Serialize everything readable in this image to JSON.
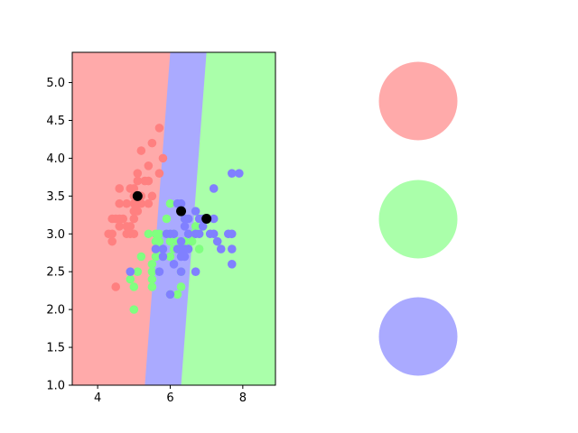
{
  "chart_data": [
    {
      "type": "scatter",
      "title": "",
      "xlabel": "",
      "ylabel": "",
      "xlim": [
        3.3,
        8.9
      ],
      "ylim": [
        1.0,
        5.4
      ],
      "xticks": [
        4,
        6,
        8
      ],
      "yticks": [
        1.0,
        1.5,
        2.0,
        2.5,
        3.0,
        3.5,
        4.0,
        4.5,
        5.0
      ],
      "grid": false,
      "legend": "none",
      "regions": [
        {
          "class": "red",
          "color": "#ffaaaa",
          "boundary_bottom_x": 5.3,
          "boundary_top_x": 6.0
        },
        {
          "class": "blue",
          "color": "#aaaaff",
          "boundary_bottom_x": 6.3,
          "boundary_top_x": 7.0
        },
        {
          "class": "green",
          "color": "#aaffaa"
        }
      ],
      "series": [
        {
          "color": "#ff8080",
          "points": [
            [
              4.3,
              3.0
            ],
            [
              4.4,
              2.9
            ],
            [
              4.4,
              3.0
            ],
            [
              4.4,
              3.2
            ],
            [
              4.5,
              3.2
            ],
            [
              4.5,
              2.3
            ],
            [
              4.6,
              3.1
            ],
            [
              4.6,
              3.4
            ],
            [
              4.6,
              3.6
            ],
            [
              4.6,
              3.2
            ],
            [
              4.7,
              3.2
            ],
            [
              4.8,
              3.0
            ],
            [
              4.8,
              3.4
            ],
            [
              4.8,
              3.1
            ],
            [
              4.9,
              3.0
            ],
            [
              4.9,
              3.1
            ],
            [
              4.9,
              3.6
            ],
            [
              5.0,
              3.0
            ],
            [
              5.0,
              3.5
            ],
            [
              5.0,
              3.4
            ],
            [
              5.0,
              3.2
            ],
            [
              5.0,
              3.3
            ],
            [
              5.0,
              3.6
            ],
            [
              5.1,
              3.5
            ],
            [
              5.1,
              3.8
            ],
            [
              5.1,
              3.7
            ],
            [
              5.1,
              3.3
            ],
            [
              5.1,
              3.4
            ],
            [
              5.2,
              3.5
            ],
            [
              5.2,
              3.4
            ],
            [
              5.2,
              4.1
            ],
            [
              5.3,
              3.7
            ],
            [
              5.4,
              3.9
            ],
            [
              5.4,
              3.7
            ],
            [
              5.4,
              3.4
            ],
            [
              5.5,
              4.2
            ],
            [
              5.5,
              3.5
            ],
            [
              5.7,
              4.4
            ],
            [
              5.7,
              3.8
            ],
            [
              5.8,
              4.0
            ]
          ]
        },
        {
          "color": "#80ff80",
          "points": [
            [
              4.9,
              2.4
            ],
            [
              5.0,
              2.0
            ],
            [
              5.0,
              2.3
            ],
            [
              5.1,
              2.5
            ],
            [
              5.2,
              2.7
            ],
            [
              5.4,
              3.0
            ],
            [
              5.5,
              2.3
            ],
            [
              5.5,
              2.4
            ],
            [
              5.5,
              2.5
            ],
            [
              5.5,
              2.6
            ],
            [
              5.6,
              2.9
            ],
            [
              5.6,
              3.0
            ],
            [
              5.6,
              2.7
            ],
            [
              5.7,
              2.8
            ],
            [
              5.7,
              2.9
            ],
            [
              5.7,
              3.0
            ],
            [
              5.8,
              2.7
            ],
            [
              5.9,
              3.0
            ],
            [
              5.9,
              3.2
            ],
            [
              6.0,
              2.2
            ],
            [
              6.0,
              2.9
            ],
            [
              6.0,
              3.4
            ],
            [
              6.0,
              2.7
            ],
            [
              6.1,
              2.8
            ],
            [
              6.1,
              3.0
            ],
            [
              6.2,
              2.2
            ],
            [
              6.2,
              2.9
            ],
            [
              6.3,
              2.3
            ],
            [
              6.3,
              2.5
            ],
            [
              6.4,
              2.9
            ],
            [
              6.4,
              3.2
            ],
            [
              6.6,
              2.9
            ],
            [
              6.6,
              3.0
            ],
            [
              6.7,
              3.1
            ],
            [
              6.7,
              3.0
            ],
            [
              6.8,
              2.8
            ],
            [
              6.9,
              3.1
            ],
            [
              7.0,
              3.2
            ]
          ]
        },
        {
          "color": "#8080ff",
          "points": [
            [
              4.9,
              2.5
            ],
            [
              5.6,
              2.8
            ],
            [
              5.7,
              2.5
            ],
            [
              5.8,
              2.7
            ],
            [
              5.8,
              2.8
            ],
            [
              5.9,
              3.0
            ],
            [
              6.0,
              3.0
            ],
            [
              6.0,
              2.2
            ],
            [
              6.1,
              3.0
            ],
            [
              6.1,
              2.6
            ],
            [
              6.2,
              2.8
            ],
            [
              6.2,
              3.4
            ],
            [
              6.3,
              2.7
            ],
            [
              6.3,
              2.8
            ],
            [
              6.3,
              2.9
            ],
            [
              6.3,
              3.3
            ],
            [
              6.3,
              3.4
            ],
            [
              6.3,
              2.5
            ],
            [
              6.4,
              2.8
            ],
            [
              6.4,
              2.7
            ],
            [
              6.4,
              3.1
            ],
            [
              6.4,
              3.2
            ],
            [
              6.5,
              3.0
            ],
            [
              6.5,
              3.2
            ],
            [
              6.5,
              2.8
            ],
            [
              6.7,
              2.5
            ],
            [
              6.7,
              3.0
            ],
            [
              6.7,
              3.3
            ],
            [
              6.8,
              3.0
            ],
            [
              6.8,
              3.2
            ],
            [
              6.9,
              3.1
            ],
            [
              6.9,
              3.2
            ],
            [
              7.1,
              3.0
            ],
            [
              7.2,
              3.6
            ],
            [
              7.2,
              3.2
            ],
            [
              7.2,
              3.0
            ],
            [
              7.3,
              2.9
            ],
            [
              7.4,
              2.8
            ],
            [
              7.6,
              3.0
            ],
            [
              7.7,
              3.8
            ],
            [
              7.7,
              2.6
            ],
            [
              7.7,
              2.8
            ],
            [
              7.7,
              3.0
            ],
            [
              7.9,
              3.8
            ]
          ]
        },
        {
          "color": "#000000",
          "points": [
            [
              5.1,
              3.5
            ],
            [
              6.3,
              3.3
            ],
            [
              7.0,
              3.2
            ]
          ]
        }
      ]
    }
  ],
  "legend_circles": [
    {
      "class": "red",
      "color": "#ffaaaa"
    },
    {
      "class": "green",
      "color": "#aaffaa"
    },
    {
      "class": "blue",
      "color": "#aaaaff"
    }
  ]
}
